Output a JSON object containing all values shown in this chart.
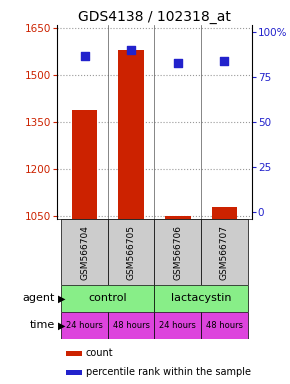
{
  "title": "GDS4138 / 102318_at",
  "samples": [
    "GSM566704",
    "GSM566705",
    "GSM566706",
    "GSM566707"
  ],
  "counts": [
    1390,
    1580,
    1050,
    1080
  ],
  "percentiles": [
    87,
    90,
    83,
    84
  ],
  "ylim_left": [
    1040,
    1660
  ],
  "yticks_left": [
    1050,
    1200,
    1350,
    1500,
    1650
  ],
  "ylim_right": [
    -4,
    104
  ],
  "yticks_right": [
    0,
    25,
    50,
    75,
    100
  ],
  "yticklabels_right": [
    "0",
    "25",
    "50",
    "75",
    "100%"
  ],
  "bar_color": "#cc2200",
  "dot_color": "#2222cc",
  "agent_labels": [
    "control",
    "lactacystin"
  ],
  "agent_color": "#88ee88",
  "time_labels": [
    "24 hours",
    "48 hours",
    "24 hours",
    "48 hours"
  ],
  "time_color": "#dd44dd",
  "sample_bg_color": "#cccccc",
  "bar_width": 0.55,
  "dot_size": 40,
  "grid_color": "#999999",
  "left_label_color": "#cc2200",
  "right_label_color": "#2222cc",
  "title_fontsize": 10,
  "tick_fontsize": 7.5,
  "legend_fontsize": 7,
  "sample_fontsize": 6.5,
  "row_fontsize": 8
}
